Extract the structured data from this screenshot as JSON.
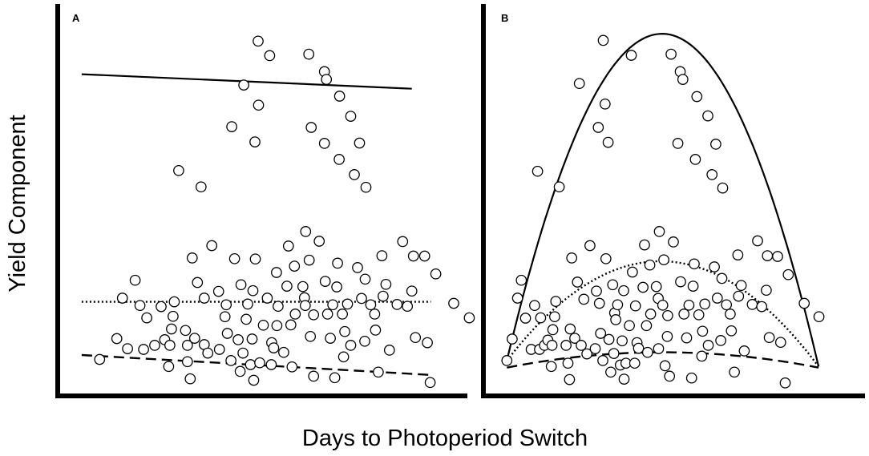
{
  "figure": {
    "ylabel": "Yield Component",
    "xlabel": "Days to Photoperiod Switch"
  },
  "chart_data": [
    {
      "type": "scatter",
      "panel": "A",
      "xlim": [
        0,
        100
      ],
      "ylim": [
        0,
        100
      ],
      "grid": false,
      "points": [
        [
          10.5,
          9.8
        ],
        [
          14.8,
          15.4
        ],
        [
          16.2,
          26.3
        ],
        [
          17.5,
          12.7
        ],
        [
          19.4,
          31.1
        ],
        [
          20.6,
          24.3
        ],
        [
          21.5,
          12.5
        ],
        [
          22.3,
          21.0
        ],
        [
          24.3,
          13.6
        ],
        [
          25.9,
          24.0
        ],
        [
          26.8,
          15.1
        ],
        [
          27.8,
          7.9
        ],
        [
          28.1,
          13.6
        ],
        [
          28.5,
          18.0
        ],
        [
          28.9,
          21.4
        ],
        [
          29.2,
          25.3
        ],
        [
          30.3,
          60.6
        ],
        [
          32.0,
          17.6
        ],
        [
          32.5,
          13.6
        ],
        [
          32.5,
          9.2
        ],
        [
          33.2,
          4.6
        ],
        [
          33.7,
          37.1
        ],
        [
          34.3,
          15.5
        ],
        [
          35.0,
          30.5
        ],
        [
          35.9,
          56.2
        ],
        [
          36.7,
          13.8
        ],
        [
          36.7,
          26.3
        ],
        [
          37.6,
          11.5
        ],
        [
          38.6,
          40.4
        ],
        [
          40.3,
          28.1
        ],
        [
          40.5,
          12.5
        ],
        [
          41.9,
          21.3
        ],
        [
          42.2,
          24.5
        ],
        [
          42.5,
          16.8
        ],
        [
          43.4,
          9.5
        ],
        [
          43.6,
          72.4
        ],
        [
          44.3,
          36.9
        ],
        [
          45.2,
          15.1
        ],
        [
          45.7,
          6.6
        ],
        [
          45.9,
          29.9
        ],
        [
          46.4,
          11.5
        ],
        [
          46.6,
          83.6
        ],
        [
          47.2,
          20.6
        ],
        [
          47.6,
          24.7
        ],
        [
          48.3,
          8.4
        ],
        [
          48.7,
          15.3
        ],
        [
          48.9,
          28.3
        ],
        [
          49.1,
          4.2
        ],
        [
          49.4,
          68.3
        ],
        [
          49.5,
          36.8
        ],
        [
          50.2,
          95.4
        ],
        [
          50.3,
          78.2
        ],
        [
          50.6,
          8.9
        ],
        [
          51.5,
          19.0
        ],
        [
          52.5,
          26.3
        ],
        [
          53.1,
          91.5
        ],
        [
          53.5,
          8.4
        ],
        [
          53.6,
          14.3
        ],
        [
          54.1,
          12.9
        ],
        [
          54.8,
          33.2
        ],
        [
          54.9,
          18.9
        ],
        [
          55.2,
          24.1
        ],
        [
          56.6,
          11.7
        ],
        [
          57.4,
          29.5
        ],
        [
          57.8,
          40.3
        ],
        [
          58.4,
          19.1
        ],
        [
          58.7,
          7.8
        ],
        [
          59.3,
          34.9
        ],
        [
          59.5,
          22.0
        ],
        [
          61.4,
          29.4
        ],
        [
          61.8,
          26.4
        ],
        [
          62.0,
          24.3
        ],
        [
          62.1,
          44.2
        ],
        [
          62.9,
          91.9
        ],
        [
          63.0,
          36.5
        ],
        [
          63.3,
          16.0
        ],
        [
          63.5,
          72.2
        ],
        [
          64.1,
          5.3
        ],
        [
          64.1,
          21.8
        ],
        [
          65.5,
          41.6
        ],
        [
          66.8,
          67.9
        ],
        [
          66.8,
          87.2
        ],
        [
          67.0,
          30.8
        ],
        [
          67.3,
          85.1
        ],
        [
          67.6,
          22.0
        ],
        [
          68.3,
          15.5
        ],
        [
          68.9,
          24.5
        ],
        [
          69.4,
          4.9
        ],
        [
          69.9,
          29.3
        ],
        [
          70.1,
          35.7
        ],
        [
          70.5,
          63.6
        ],
        [
          70.6,
          80.6
        ],
        [
          71.3,
          22.0
        ],
        [
          71.6,
          10.5
        ],
        [
          71.9,
          17.3
        ],
        [
          72.6,
          24.7
        ],
        [
          73.4,
          13.6
        ],
        [
          73.4,
          75.2
        ],
        [
          74.3,
          59.5
        ],
        [
          75.1,
          34.5
        ],
        [
          75.6,
          68.0
        ],
        [
          76.1,
          26.2
        ],
        [
          76.9,
          14.7
        ],
        [
          77.0,
          31.4
        ],
        [
          77.2,
          56.1
        ],
        [
          78.4,
          24.5
        ],
        [
          79.4,
          22.0
        ],
        [
          79.6,
          17.7
        ],
        [
          80.3,
          6.4
        ],
        [
          81.2,
          37.7
        ],
        [
          81.5,
          26.8
        ],
        [
          82.2,
          30.0
        ],
        [
          83.1,
          12.3
        ],
        [
          85.0,
          24.6
        ],
        [
          86.4,
          41.5
        ],
        [
          87.6,
          24.1
        ],
        [
          88.7,
          28.2
        ],
        [
          89.1,
          37.6
        ],
        [
          89.6,
          15.7
        ],
        [
          91.9,
          37.6
        ],
        [
          92.6,
          14.3
        ],
        [
          93.3,
          3.6
        ],
        [
          94.7,
          32.8
        ],
        [
          99.2,
          24.9
        ],
        [
          103.1,
          21.0
        ]
      ],
      "fits": [
        {
          "style": "solid",
          "shape": "linear",
          "x": [
            6,
            88.7
          ],
          "y": [
            86.5,
            82.6
          ]
        },
        {
          "style": "dotted",
          "shape": "linear",
          "x": [
            6,
            93.5
          ],
          "y": [
            25.3,
            25.3
          ]
        },
        {
          "style": "dashed",
          "shape": "linear",
          "x": [
            6,
            94.0
          ],
          "y": [
            11.0,
            5.6
          ]
        }
      ]
    },
    {
      "type": "scatter",
      "panel": "B",
      "xlim": [
        0,
        100
      ],
      "ylim": [
        0,
        100
      ],
      "grid": false,
      "points": [
        [
          6.2,
          9.5
        ],
        [
          7.6,
          15.3
        ],
        [
          9.0,
          26.3
        ],
        [
          10.0,
          31.1
        ],
        [
          11.1,
          20.9
        ],
        [
          12.6,
          12.5
        ],
        [
          13.5,
          24.3
        ],
        [
          14.3,
          60.4
        ],
        [
          14.8,
          12.5
        ],
        [
          15.1,
          21.0
        ],
        [
          16.1,
          13.6
        ],
        [
          17.0,
          15.0
        ],
        [
          17.9,
          7.9
        ],
        [
          18.1,
          13.6
        ],
        [
          18.3,
          17.8
        ],
        [
          18.8,
          21.3
        ],
        [
          19.1,
          25.4
        ],
        [
          20.0,
          56.2
        ],
        [
          21.8,
          13.6
        ],
        [
          22.3,
          8.8
        ],
        [
          22.7,
          4.4
        ],
        [
          22.9,
          18.0
        ],
        [
          23.3,
          37.1
        ],
        [
          24.1,
          15.5
        ],
        [
          24.8,
          30.6
        ],
        [
          25.3,
          84.0
        ],
        [
          25.8,
          13.6
        ],
        [
          26.5,
          26.0
        ],
        [
          27.3,
          11.3
        ],
        [
          28.1,
          40.4
        ],
        [
          29.5,
          12.7
        ],
        [
          29.8,
          28.2
        ],
        [
          30.3,
          72.2
        ],
        [
          30.6,
          24.9
        ],
        [
          30.9,
          16.8
        ],
        [
          31.5,
          9.5
        ],
        [
          31.6,
          95.6
        ],
        [
          32.1,
          78.5
        ],
        [
          32.3,
          36.9
        ],
        [
          32.9,
          68.2
        ],
        [
          33.1,
          15.2
        ],
        [
          33.6,
          6.4
        ],
        [
          34.1,
          29.9
        ],
        [
          34.4,
          11.4
        ],
        [
          34.6,
          22.3
        ],
        [
          34.9,
          20.5
        ],
        [
          35.4,
          24.5
        ],
        [
          36.1,
          8.3
        ],
        [
          36.6,
          14.8
        ],
        [
          37.0,
          28.3
        ],
        [
          37.1,
          4.5
        ],
        [
          37.6,
          8.8
        ],
        [
          38.5,
          18.9
        ],
        [
          39.0,
          91.6
        ],
        [
          39.3,
          33.3
        ],
        [
          39.9,
          8.8
        ],
        [
          40.1,
          24.2
        ],
        [
          40.5,
          14.3
        ],
        [
          40.9,
          12.8
        ],
        [
          42.1,
          29.2
        ],
        [
          42.5,
          40.6
        ],
        [
          43.0,
          18.9
        ],
        [
          43.3,
          11.7
        ],
        [
          43.9,
          35.2
        ],
        [
          44.1,
          22.0
        ],
        [
          45.6,
          29.4
        ],
        [
          46.1,
          26.2
        ],
        [
          46.2,
          12.7
        ],
        [
          46.4,
          44.2
        ],
        [
          47.3,
          24.4
        ],
        [
          47.6,
          36.6
        ],
        [
          47.9,
          8.1
        ],
        [
          48.5,
          16.0
        ],
        [
          48.6,
          21.6
        ],
        [
          49.1,
          5.3
        ],
        [
          49.5,
          91.9
        ],
        [
          50.1,
          41.4
        ],
        [
          51.3,
          67.9
        ],
        [
          51.9,
          87.2
        ],
        [
          52.0,
          30.7
        ],
        [
          52.6,
          85.1
        ],
        [
          52.9,
          22.0
        ],
        [
          53.6,
          15.6
        ],
        [
          54.2,
          24.4
        ],
        [
          54.9,
          4.8
        ],
        [
          55.3,
          29.5
        ],
        [
          55.6,
          35.5
        ],
        [
          55.9,
          63.6
        ],
        [
          56.3,
          80.5
        ],
        [
          56.8,
          21.8
        ],
        [
          57.6,
          10.7
        ],
        [
          57.8,
          17.4
        ],
        [
          58.4,
          24.7
        ],
        [
          59.2,
          75.3
        ],
        [
          59.3,
          13.6
        ],
        [
          60.3,
          59.5
        ],
        [
          60.9,
          34.7
        ],
        [
          61.3,
          67.7
        ],
        [
          61.7,
          26.3
        ],
        [
          62.6,
          14.9
        ],
        [
          62.9,
          31.6
        ],
        [
          63.1,
          55.9
        ],
        [
          64.1,
          24.5
        ],
        [
          65.1,
          22.0
        ],
        [
          65.4,
          17.5
        ],
        [
          66.2,
          6.4
        ],
        [
          67.1,
          37.9
        ],
        [
          67.3,
          26.8
        ],
        [
          68.0,
          29.7
        ],
        [
          68.8,
          12.1
        ],
        [
          70.9,
          24.6
        ],
        [
          72.3,
          41.7
        ],
        [
          73.4,
          24.0
        ],
        [
          74.6,
          28.4
        ],
        [
          74.9,
          37.7
        ],
        [
          75.4,
          15.7
        ],
        [
          77.6,
          37.5
        ],
        [
          78.4,
          14.4
        ],
        [
          79.6,
          3.5
        ],
        [
          80.4,
          32.6
        ],
        [
          84.6,
          24.9
        ],
        [
          88.5,
          21.3
        ]
      ],
      "fits": [
        {
          "style": "solid",
          "shape": "parabola",
          "x": [
            6.2,
            49.0,
            88.4
          ],
          "y": [
            9.5,
            97.2,
            7.9
          ]
        },
        {
          "style": "dotted",
          "shape": "parabola",
          "x": [
            6.2,
            46.0,
            88.4
          ],
          "y": [
            9.5,
            36.2,
            7.9
          ]
        },
        {
          "style": "dashed",
          "shape": "parabola",
          "x": [
            6.2,
            44.0,
            88.4
          ],
          "y": [
            7.6,
            11.7,
            7.6
          ]
        }
      ]
    }
  ]
}
